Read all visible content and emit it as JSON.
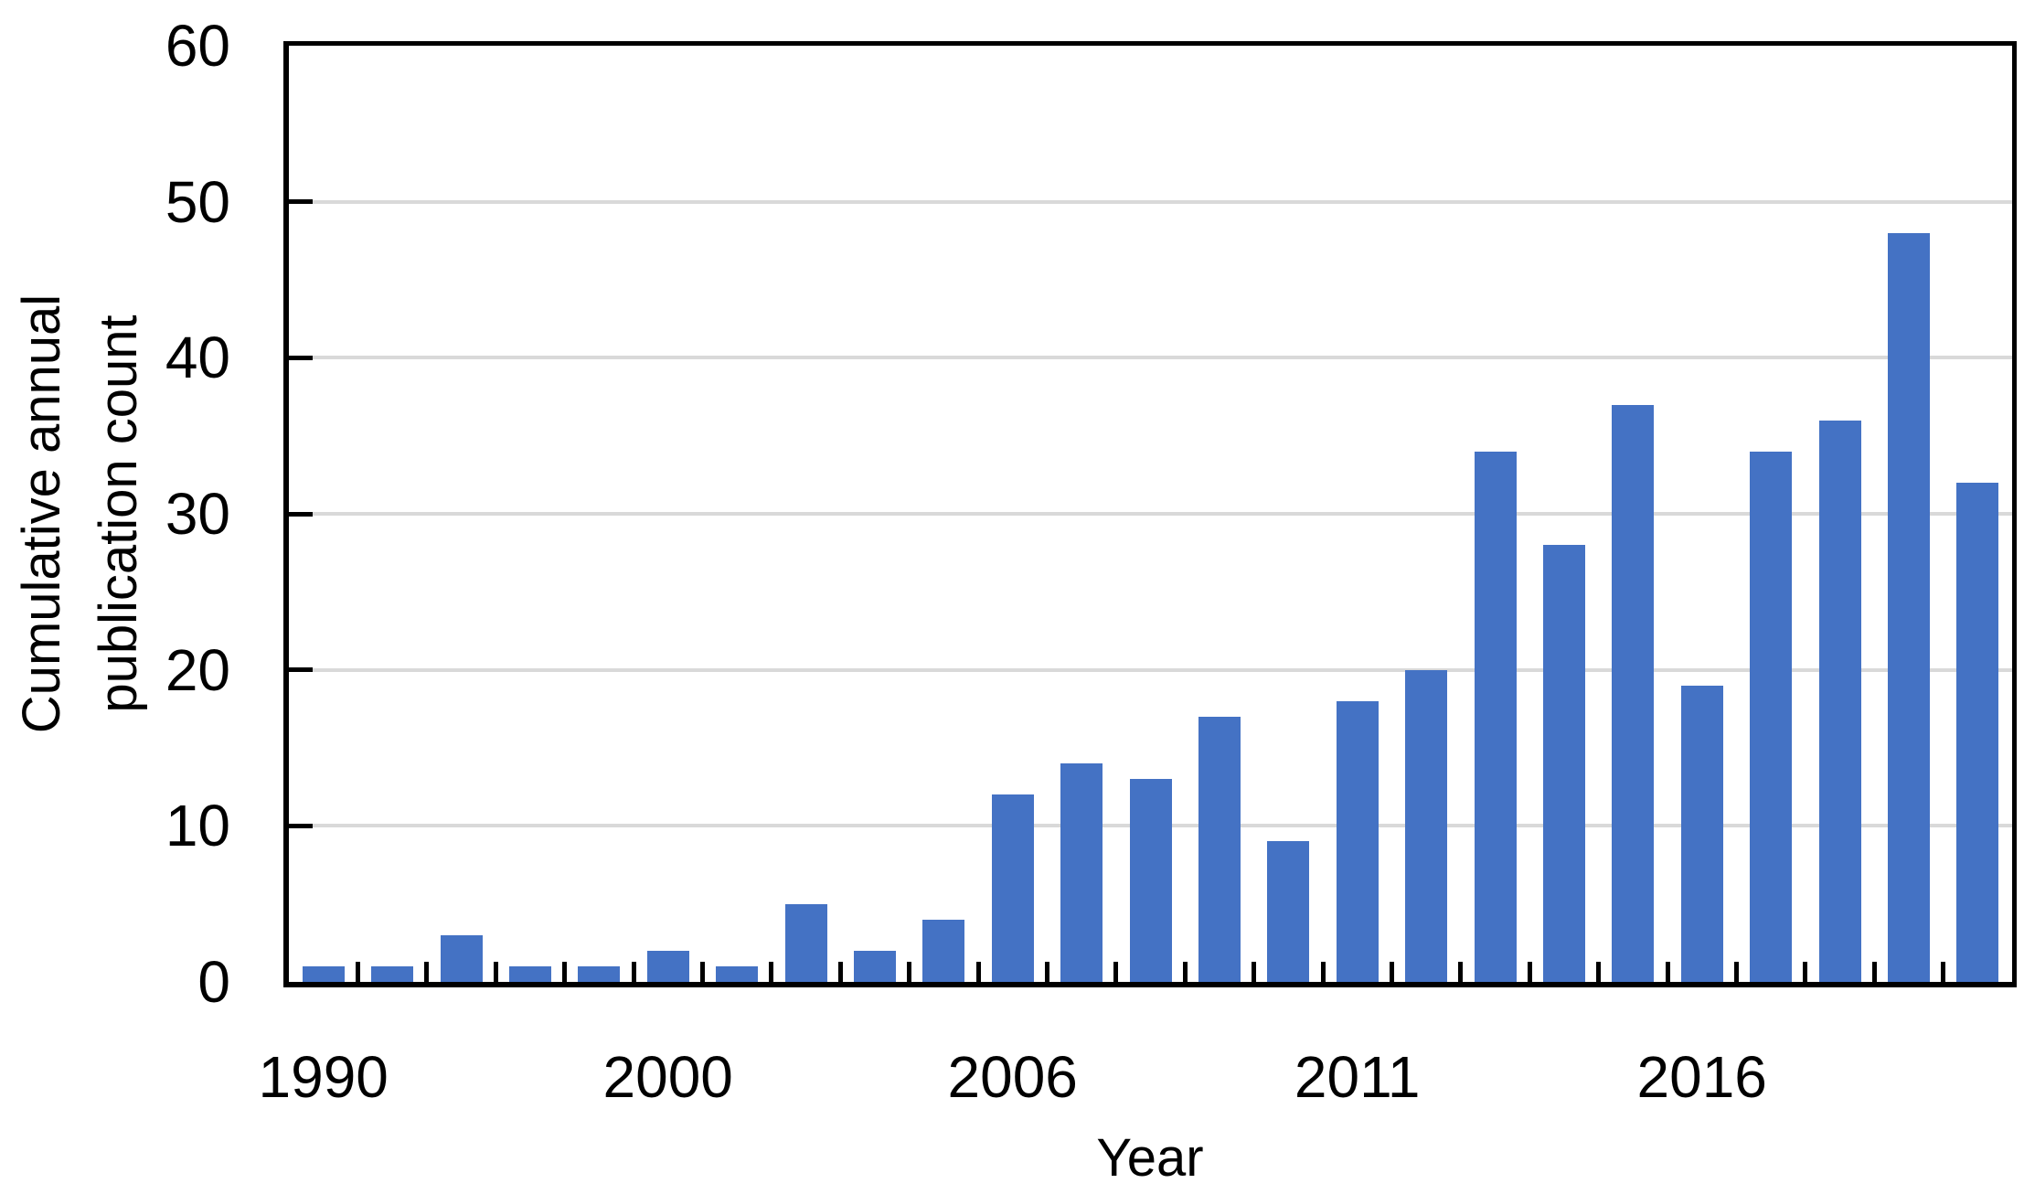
{
  "chart_data": {
    "type": "bar",
    "title": "",
    "xlabel": "Year",
    "ylabel": "Cumulative annual publication count",
    "ylabel_lines": [
      "Cumulative annual",
      "publication count"
    ],
    "values": [
      1,
      1,
      3,
      1,
      1,
      2,
      1,
      5,
      2,
      4,
      12,
      14,
      13,
      17,
      9,
      18,
      20,
      34,
      28,
      37,
      19,
      34,
      36,
      48,
      32
    ],
    "bar_count": 25,
    "x_tick_labels": [
      {
        "index": 0,
        "label": "1990"
      },
      {
        "index": 5,
        "label": "2000"
      },
      {
        "index": 10,
        "label": "2006"
      },
      {
        "index": 15,
        "label": "2011"
      },
      {
        "index": 20,
        "label": "2016"
      }
    ],
    "y_ticks": [
      0,
      10,
      20,
      30,
      40,
      50,
      60
    ],
    "ylim": [
      0,
      60
    ],
    "grid": true,
    "legend_position": "none",
    "colors": {
      "bar": "#4472C4",
      "gridline": "#D9D9D9",
      "axis": "#000000",
      "background": "#FFFFFF"
    }
  }
}
